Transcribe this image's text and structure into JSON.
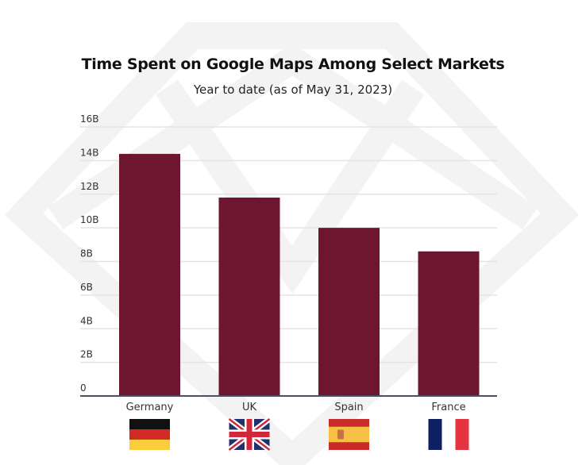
{
  "chart_data": {
    "type": "bar",
    "title": "Time Spent on Google Maps Among Select Markets",
    "subtitle": "Year to date (as of May 31, 2023)",
    "xlabel": "",
    "ylabel": "",
    "categories": [
      "Germany",
      "UK",
      "Spain",
      "France"
    ],
    "values": [
      14.4,
      11.8,
      10.0,
      8.6
    ],
    "unit": "B",
    "ylim": [
      0,
      16
    ],
    "yticks": [
      0,
      2,
      4,
      6,
      8,
      10,
      12,
      14,
      16
    ],
    "ytick_labels": [
      "0",
      "2B",
      "4B",
      "6B",
      "8B",
      "10B",
      "12B",
      "14B",
      "16B"
    ],
    "grid": true,
    "legend": "none",
    "bar_color": "#6e1630",
    "flags": [
      "germany-flag",
      "uk-flag",
      "spain-flag",
      "france-flag"
    ]
  }
}
